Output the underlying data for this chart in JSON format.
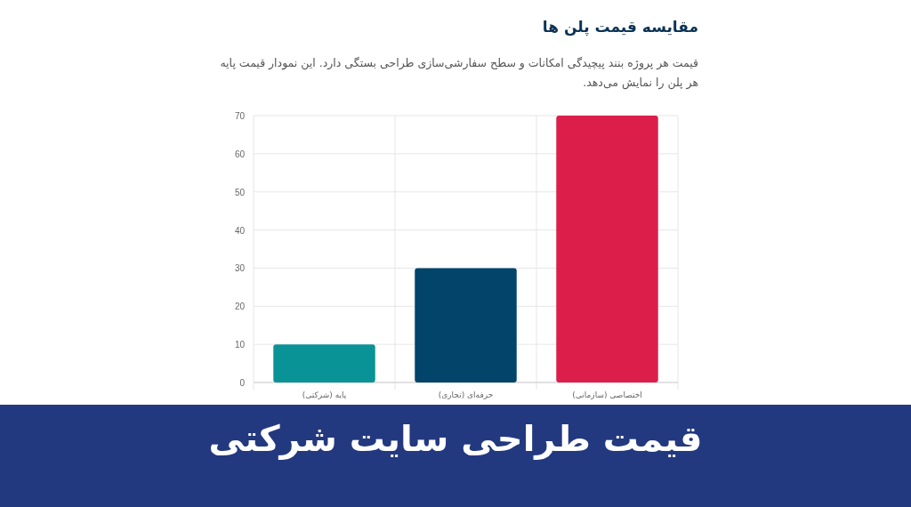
{
  "chart_data": {
    "type": "bar",
    "title": "مقایسه قیمت پلن ها",
    "subtitle": "قیمت هر پروژه بنند پیچیدگی امکانات و سطح سفارشی‌سازی طراحی بستگی دارد. این نمودار قیمت پایه هر پلن را نمایش می‌دهد.",
    "categories": [
      "پایه (شرکتی)",
      "حرفه‌ای (تجاری)",
      "اختصاصی (سازمانی)"
    ],
    "values": [
      10,
      30,
      70
    ],
    "colors": [
      "#0a9396",
      "#03446b",
      "#dc1f4a"
    ],
    "ylim": [
      0,
      70
    ],
    "yticks": [
      0,
      10,
      20,
      30,
      40,
      50,
      60,
      70
    ],
    "grid": true,
    "annotations": [
      "قیمت طراحی سایت شرکتی"
    ]
  }
}
